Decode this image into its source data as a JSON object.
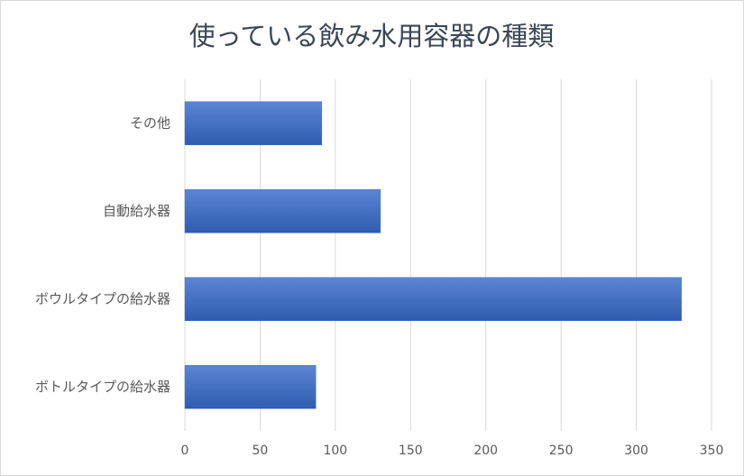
{
  "chart_data": {
    "type": "hbar",
    "title": "使っている飲み水用容器の種類",
    "categories": [
      "その他",
      "自動給水器",
      "ボウルタイプの給水器",
      "ボトルタイプの給水器"
    ],
    "values": [
      91,
      130,
      330,
      87
    ],
    "color": "#4472c4",
    "xlim": [
      0,
      350
    ],
    "xticks": [
      0,
      50,
      100,
      150,
      200,
      250,
      300,
      350
    ],
    "grid": true
  }
}
